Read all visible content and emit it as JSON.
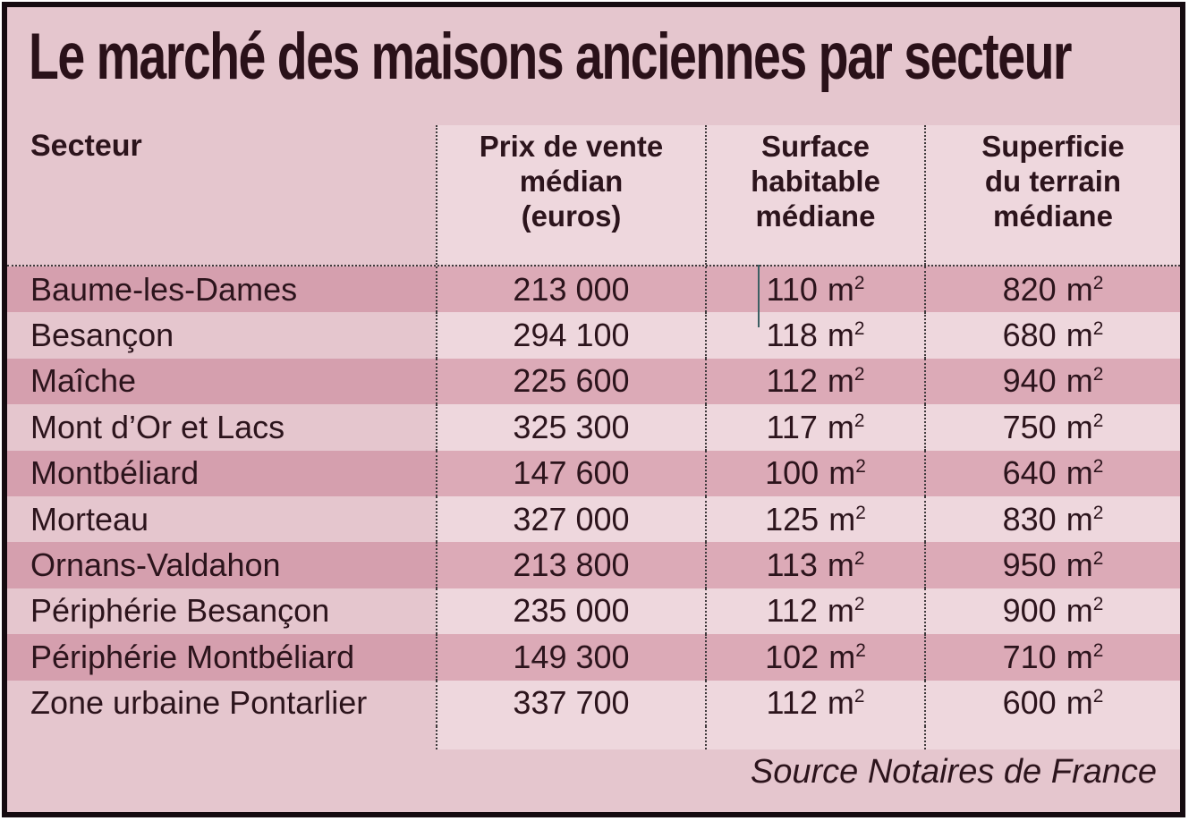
{
  "title": "Le marché des maisons anciennes par secteur",
  "source": "Source Notaires de France",
  "table": {
    "headers": {
      "secteur": "Secteur",
      "prix": "Prix de vente\nmédian\n(euros)",
      "surface": "Surface\nhabitable\nmédiane",
      "terrain": "Superficie\ndu terrain\nmédiane"
    },
    "unit_base": "m",
    "unit_sup": "2",
    "rows": [
      {
        "secteur": "Baume-les-Dames",
        "prix": "213 000",
        "surface": "110",
        "terrain": "820"
      },
      {
        "secteur": "Besançon",
        "prix": "294 100",
        "surface": "118",
        "terrain": "680"
      },
      {
        "secteur": "Maîche",
        "prix": "225 600",
        "surface": "112",
        "terrain": "940"
      },
      {
        "secteur": "Mont d’Or et Lacs",
        "prix": "325 300",
        "surface": "117",
        "terrain": "750"
      },
      {
        "secteur": "Montbéliard",
        "prix": "147 600",
        "surface": "100",
        "terrain": "640"
      },
      {
        "secteur": "Morteau",
        "prix": "327 000",
        "surface": "125",
        "terrain": "830"
      },
      {
        "secteur": "Ornans-Valdahon",
        "prix": "213 800",
        "surface": "113",
        "terrain": "950"
      },
      {
        "secteur": "Périphérie Besançon",
        "prix": "235 000",
        "surface": "112",
        "terrain": "900"
      },
      {
        "secteur": "Périphérie Montbéliard",
        "prix": "149 300",
        "surface": "102",
        "terrain": "710"
      },
      {
        "secteur": "Zone urbaine Pontarlier",
        "prix": "337 700",
        "surface": "112",
        "terrain": "600"
      }
    ]
  },
  "colors": {
    "background": "#e5c6ce",
    "column_highlight": "#eed7dd",
    "row_dark": "#d59fae",
    "row_dark_highlight": "#dcaab7",
    "text": "#2c141c",
    "frame_border": "#150b10"
  },
  "chart_data": {
    "type": "table",
    "title": "Le marché des maisons anciennes par secteur",
    "columns": [
      "Secteur",
      "Prix de vente médian (euros)",
      "Surface habitable médiane",
      "Superficie du terrain médiane"
    ],
    "rows": [
      {
        "secteur": "Baume-les-Dames",
        "prix_eur": 213000,
        "surface_m2": 110,
        "terrain_m2": 820
      },
      {
        "secteur": "Besançon",
        "prix_eur": 294100,
        "surface_m2": 118,
        "terrain_m2": 680
      },
      {
        "secteur": "Maîche",
        "prix_eur": 225600,
        "surface_m2": 112,
        "terrain_m2": 940
      },
      {
        "secteur": "Mont d’Or et Lacs",
        "prix_eur": 325300,
        "surface_m2": 117,
        "terrain_m2": 750
      },
      {
        "secteur": "Montbéliard",
        "prix_eur": 147600,
        "surface_m2": 100,
        "terrain_m2": 640
      },
      {
        "secteur": "Morteau",
        "prix_eur": 327000,
        "surface_m2": 125,
        "terrain_m2": 830
      },
      {
        "secteur": "Ornans-Valdahon",
        "prix_eur": 213800,
        "surface_m2": 113,
        "terrain_m2": 950
      },
      {
        "secteur": "Périphérie Besançon",
        "prix_eur": 235000,
        "surface_m2": 112,
        "terrain_m2": 900
      },
      {
        "secteur": "Périphérie Montbéliard",
        "prix_eur": 149300,
        "surface_m2": 102,
        "terrain_m2": 710
      },
      {
        "secteur": "Zone urbaine Pontarlier",
        "prix_eur": 337700,
        "surface_m2": 112,
        "terrain_m2": 600
      }
    ],
    "source": "Source Notaires de France"
  }
}
